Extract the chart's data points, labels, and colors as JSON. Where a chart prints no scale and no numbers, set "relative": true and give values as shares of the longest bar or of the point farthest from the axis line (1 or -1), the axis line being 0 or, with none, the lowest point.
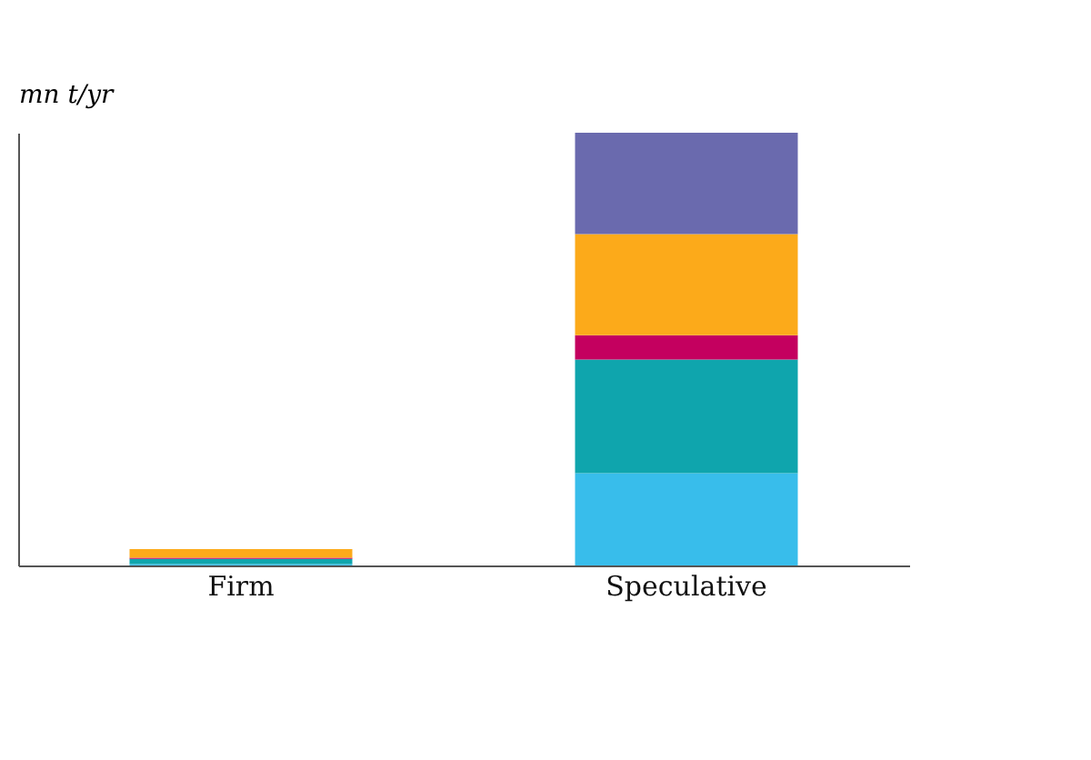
{
  "chart_data": {
    "type": "bar",
    "ylabel": "mn t/yr",
    "categories": [
      "Firm",
      "Speculative"
    ],
    "stacked": true,
    "relative": true,
    "legend": false,
    "series": [
      {
        "color": "#38bdeb",
        "values": [
          0.003,
          0.213
        ]
      },
      {
        "color": "#0fa5ad",
        "values": [
          0.012,
          0.263
        ]
      },
      {
        "color": "#c4005f",
        "values": [
          0.003,
          0.056
        ]
      },
      {
        "color": "#fcaa1a",
        "values": [
          0.02,
          0.234
        ]
      },
      {
        "color": "#6a6aae",
        "values": [
          0,
          0.234
        ]
      }
    ]
  }
}
